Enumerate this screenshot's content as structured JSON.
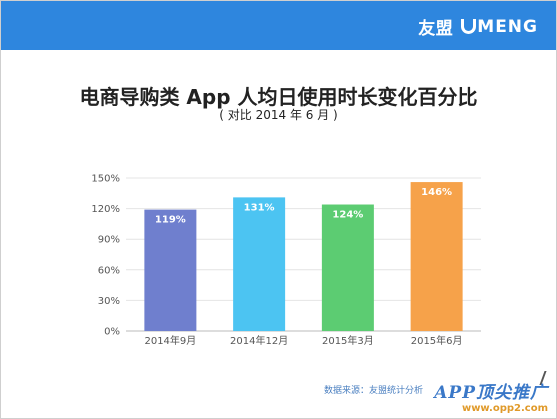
{
  "header": {
    "brand_cn": "友盟",
    "brand_en": "MENG",
    "color": "#2e86de"
  },
  "chart_data": {
    "type": "bar",
    "title": "电商导购类 App 人均日使用时长变化百分比",
    "subtitle": "( 对比 2014 年 6 月 )",
    "categories": [
      "2014年9月",
      "2014年12月",
      "2015年3月",
      "2015年6月"
    ],
    "values": [
      119,
      131,
      124,
      146
    ],
    "value_labels": [
      "119%",
      "131%",
      "124%",
      "146%"
    ],
    "colors": [
      "#6f7fce",
      "#4cc4f2",
      "#5ccc72",
      "#f6a24a"
    ],
    "yticks": [
      "0%",
      "30%",
      "60%",
      "90%",
      "120%",
      "150%"
    ],
    "ylim": [
      0,
      150
    ],
    "grid": true,
    "xlabel": "",
    "ylabel": ""
  },
  "source": "数据来源：友盟统计分析",
  "watermark": {
    "title": "APP顶尖推广",
    "url": "www.opp2.com"
  }
}
